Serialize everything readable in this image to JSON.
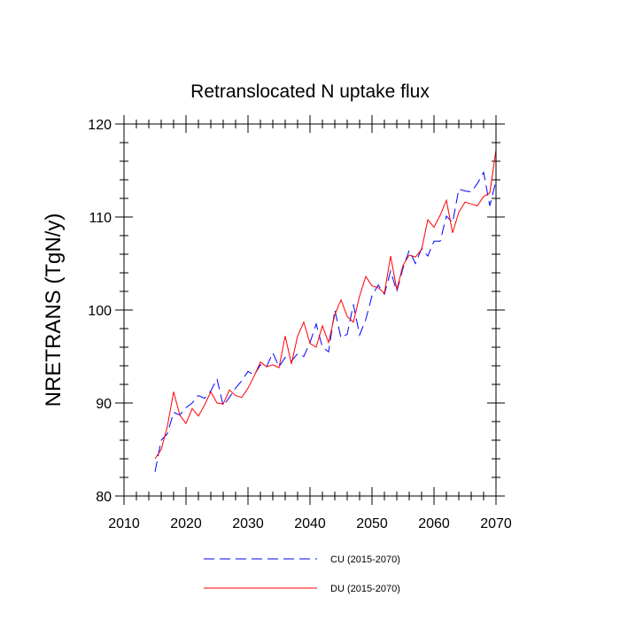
{
  "chart_data": {
    "type": "line",
    "title": "Retranslocated N uptake flux",
    "xlabel": "",
    "ylabel": "NRETRANS  (TgN/y)",
    "xlim": [
      2010,
      2070
    ],
    "ylim": [
      80,
      120
    ],
    "xticks": [
      2010,
      2020,
      2030,
      2040,
      2050,
      2060,
      2070
    ],
    "yticks": [
      80,
      90,
      100,
      110,
      120
    ],
    "x": [
      2015,
      2016,
      2017,
      2018,
      2019,
      2020,
      2021,
      2022,
      2023,
      2024,
      2025,
      2026,
      2027,
      2028,
      2029,
      2030,
      2031,
      2032,
      2033,
      2034,
      2035,
      2036,
      2037,
      2038,
      2039,
      2040,
      2041,
      2042,
      2043,
      2044,
      2045,
      2046,
      2047,
      2048,
      2049,
      2050,
      2051,
      2052,
      2053,
      2054,
      2055,
      2056,
      2057,
      2058,
      2059,
      2060,
      2061,
      2062,
      2063,
      2064,
      2065,
      2066,
      2067,
      2068,
      2069,
      2070
    ],
    "series": [
      {
        "name": "CU (2015-2070)",
        "color": "#0000ff",
        "style": "dashed",
        "values": [
          82.6,
          86.0,
          86.7,
          89.0,
          88.7,
          89.5,
          90.0,
          90.8,
          90.5,
          91.3,
          92.6,
          89.7,
          90.6,
          91.6,
          92.4,
          93.4,
          93.0,
          94.1,
          93.9,
          95.4,
          93.9,
          94.9,
          94.5,
          95.3,
          95.0,
          96.5,
          98.5,
          96.0,
          95.5,
          100.0,
          97.0,
          97.4,
          100.6,
          97.3,
          99.0,
          101.5,
          102.7,
          101.7,
          104.2,
          102.0,
          104.5,
          106.4,
          105.0,
          106.6,
          105.8,
          107.4,
          107.4,
          110.1,
          109.4,
          113.0,
          112.8,
          112.7,
          113.6,
          114.8,
          111.2,
          113.9
        ]
      },
      {
        "name": "DU (2015-2070)",
        "color": "#ff0000",
        "style": "solid",
        "values": [
          84.0,
          85.0,
          87.5,
          91.2,
          88.7,
          87.8,
          89.4,
          88.6,
          89.8,
          91.2,
          90.0,
          89.9,
          91.4,
          90.8,
          90.6,
          91.6,
          92.9,
          94.4,
          93.9,
          94.1,
          93.8,
          97.2,
          94.2,
          97.2,
          98.7,
          96.4,
          96.0,
          98.3,
          96.5,
          99.5,
          101.1,
          99.3,
          98.7,
          101.5,
          103.6,
          102.6,
          102.4,
          101.8,
          105.8,
          102.2,
          104.8,
          105.9,
          105.7,
          106.5,
          109.7,
          108.9,
          110.2,
          111.8,
          108.3,
          110.5,
          111.6,
          111.4,
          111.2,
          112.2,
          112.6,
          117.2
        ]
      }
    ],
    "legend_position": "bottom-center",
    "grid": false
  }
}
